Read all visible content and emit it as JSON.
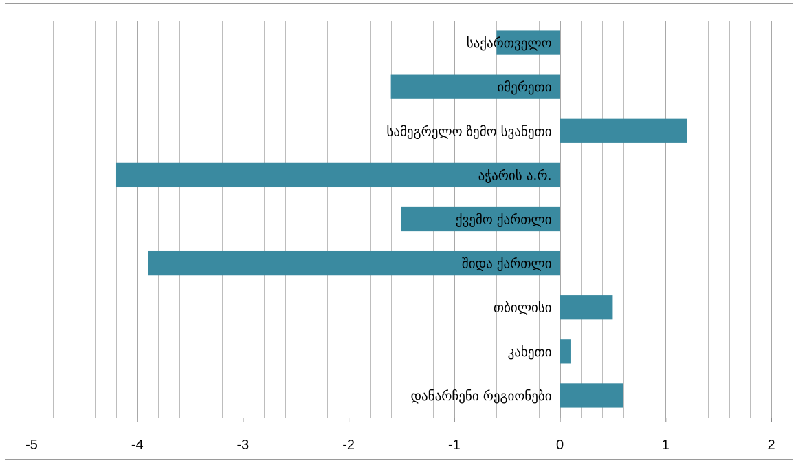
{
  "chart_data": {
    "type": "bar",
    "orientation": "horizontal",
    "categories": [
      "საქართველო",
      "იმერეთი",
      "სამეგრელო ზემო სვანეთი",
      "აჭარის ა.რ.",
      "ქვემო ქართლი",
      "შიდა ქართლი",
      "თბილისი",
      "კახეთი",
      "დანარჩენი რეგიონები"
    ],
    "values": [
      -0.6,
      -1.6,
      1.2,
      -4.2,
      -1.5,
      -3.9,
      0.5,
      0.1,
      0.6
    ],
    "xlim": [
      -5,
      2
    ],
    "x_ticks": [
      "-5",
      "-4",
      "-3",
      "-2",
      "-1",
      "0",
      "1",
      "2"
    ],
    "minor_grid_step": 0.2,
    "grid": true,
    "legend": "none",
    "title": "",
    "xlabel": "",
    "ylabel": "",
    "colors": {
      "bar": "#3a8aa0",
      "grid": "#bdbdbd",
      "axis": "#888888",
      "frame": "#9a9a9a"
    }
  }
}
